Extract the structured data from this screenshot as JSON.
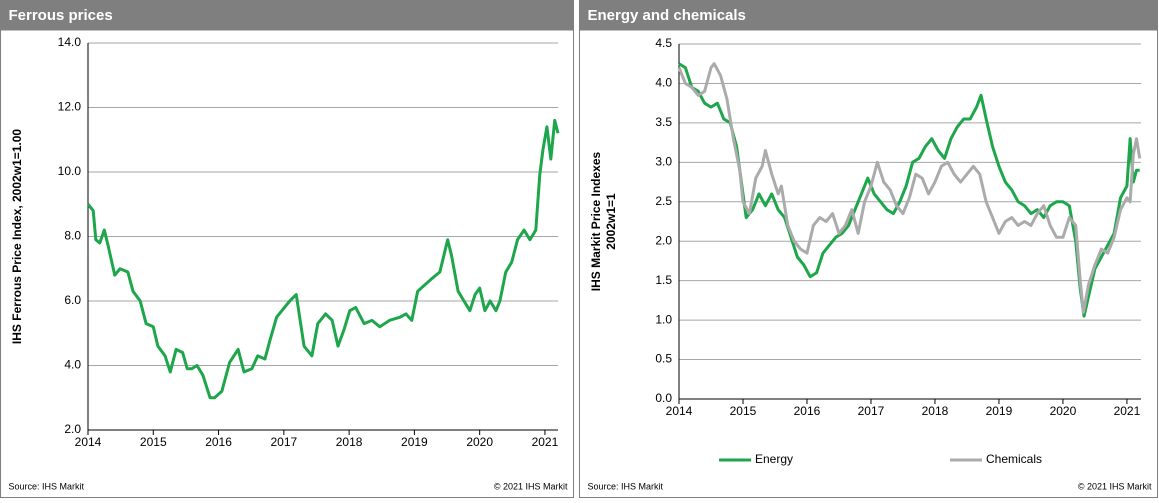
{
  "chart_data": [
    {
      "type": "line",
      "title": "Ferrous prices",
      "ylabel": "IHS Ferrous Price Index, 2002w1=1.00",
      "source": "Source: IHS Markit",
      "copyright": "© 2021 IHS Markit",
      "xlim": [
        2014,
        2021.2
      ],
      "xticks": [
        2014,
        2015,
        2016,
        2017,
        2018,
        2019,
        2020,
        2021
      ],
      "ylim": [
        2,
        14
      ],
      "yticks": [
        {
          "value": 2,
          "label": "2.0"
        },
        {
          "value": 4,
          "label": "4.0"
        },
        {
          "value": 6,
          "label": "6.0"
        },
        {
          "value": 8,
          "label": "8.0"
        },
        {
          "value": 10,
          "label": "10.0"
        },
        {
          "value": 12,
          "label": "12.0"
        },
        {
          "value": 14,
          "label": "14.0"
        }
      ],
      "grid": true,
      "series": [
        {
          "color": "#1ea64b",
          "x": [
            2014.0,
            2014.08,
            2014.12,
            2014.18,
            2014.25,
            2014.31,
            2014.41,
            2014.49,
            2014.61,
            2014.69,
            2014.8,
            2014.89,
            2015.0,
            2015.07,
            2015.18,
            2015.26,
            2015.35,
            2015.45,
            2015.52,
            2015.59,
            2015.67,
            2015.76,
            2015.87,
            2015.94,
            2016.05,
            2016.17,
            2016.3,
            2016.39,
            2016.51,
            2016.6,
            2016.71,
            2016.79,
            2016.89,
            2016.97,
            2017.09,
            2017.19,
            2017.31,
            2017.43,
            2017.52,
            2017.64,
            2017.74,
            2017.83,
            2017.92,
            2018.01,
            2018.1,
            2018.23,
            2018.35,
            2018.47,
            2018.62,
            2018.78,
            2018.87,
            2018.96,
            2019.05,
            2019.16,
            2019.27,
            2019.39,
            2019.51,
            2019.57,
            2019.67,
            2019.76,
            2019.85,
            2019.93,
            2020.0,
            2020.08,
            2020.16,
            2020.25,
            2020.31,
            2020.4,
            2020.49,
            2020.58,
            2020.68,
            2020.77,
            2020.86,
            2020.92,
            2020.97,
            2021.03,
            2021.09,
            2021.15,
            2021.2
          ],
          "values": [
            9.0,
            8.8,
            7.9,
            7.8,
            8.2,
            7.7,
            6.8,
            7.0,
            6.9,
            6.3,
            6.0,
            5.3,
            5.2,
            4.6,
            4.3,
            3.8,
            4.5,
            4.4,
            3.9,
            3.9,
            4.0,
            3.7,
            3.0,
            3.0,
            3.2,
            4.1,
            4.5,
            3.8,
            3.9,
            4.3,
            4.2,
            4.8,
            5.5,
            5.7,
            6.0,
            6.2,
            4.6,
            4.3,
            5.3,
            5.6,
            5.4,
            4.6,
            5.1,
            5.7,
            5.8,
            5.3,
            5.4,
            5.2,
            5.4,
            5.5,
            5.6,
            5.4,
            6.3,
            6.5,
            6.7,
            6.9,
            7.9,
            7.4,
            6.3,
            6.0,
            5.7,
            6.2,
            6.4,
            5.7,
            6.0,
            5.7,
            6.0,
            6.9,
            7.2,
            7.9,
            8.2,
            7.9,
            8.2,
            9.9,
            10.7,
            11.4,
            10.4,
            11.6,
            11.2
          ]
        }
      ]
    },
    {
      "type": "line",
      "title": "Energy and chemicals",
      "ylabel": [
        "IHS Markit Price Indexes",
        "2002w1=1"
      ],
      "source": "Source: IHS Markit",
      "copyright": "© 2021 IHS Markit",
      "xlim": [
        2014,
        2021.22
      ],
      "xticks": [
        2014,
        2015,
        2016,
        2017,
        2018,
        2019,
        2020,
        2021
      ],
      "ylim": [
        0,
        4.5
      ],
      "yticks": [
        {
          "value": 0,
          "label": "0.0"
        },
        {
          "value": 0.5,
          "label": "0.5"
        },
        {
          "value": 1,
          "label": "1.0"
        },
        {
          "value": 1.5,
          "label": "1.5"
        },
        {
          "value": 2,
          "label": "2.0"
        },
        {
          "value": 2.5,
          "label": "2.5"
        },
        {
          "value": 3,
          "label": "3.0"
        },
        {
          "value": 3.5,
          "label": "3.5"
        },
        {
          "value": 4,
          "label": "4.0"
        },
        {
          "value": 4.5,
          "label": "4.5"
        }
      ],
      "grid": true,
      "legend": "bottom",
      "series": [
        {
          "name": "Energy",
          "color": "#1ea64b",
          "x": [
            2014.0,
            2014.1,
            2014.2,
            2014.3,
            2014.4,
            2014.5,
            2014.6,
            2014.7,
            2014.8,
            2014.9,
            2015.0,
            2015.05,
            2015.15,
            2015.25,
            2015.35,
            2015.45,
            2015.55,
            2015.65,
            2015.75,
            2015.85,
            2015.95,
            2016.05,
            2016.15,
            2016.25,
            2016.35,
            2016.45,
            2016.55,
            2016.65,
            2016.75,
            2016.85,
            2016.95,
            2017.05,
            2017.15,
            2017.25,
            2017.35,
            2017.45,
            2017.55,
            2017.65,
            2017.75,
            2017.85,
            2017.95,
            2018.05,
            2018.15,
            2018.25,
            2018.35,
            2018.45,
            2018.55,
            2018.65,
            2018.72,
            2018.8,
            2018.9,
            2019.0,
            2019.1,
            2019.2,
            2019.3,
            2019.4,
            2019.5,
            2019.6,
            2019.7,
            2019.8,
            2019.9,
            2020.0,
            2020.1,
            2020.2,
            2020.27,
            2020.33,
            2020.4,
            2020.5,
            2020.6,
            2020.7,
            2020.8,
            2020.9,
            2021.0,
            2021.05,
            2021.1,
            2021.15,
            2021.2
          ],
          "values": [
            4.25,
            4.2,
            3.95,
            3.9,
            3.75,
            3.7,
            3.75,
            3.55,
            3.5,
            3.2,
            2.6,
            2.3,
            2.4,
            2.6,
            2.45,
            2.6,
            2.4,
            2.3,
            2.05,
            1.8,
            1.7,
            1.55,
            1.6,
            1.85,
            1.95,
            2.05,
            2.1,
            2.2,
            2.4,
            2.6,
            2.8,
            2.6,
            2.5,
            2.4,
            2.35,
            2.5,
            2.7,
            3.0,
            3.05,
            3.2,
            3.3,
            3.15,
            3.05,
            3.3,
            3.45,
            3.55,
            3.55,
            3.7,
            3.85,
            3.55,
            3.2,
            2.95,
            2.75,
            2.65,
            2.5,
            2.45,
            2.35,
            2.4,
            2.3,
            2.45,
            2.5,
            2.5,
            2.45,
            2.0,
            1.4,
            1.05,
            1.3,
            1.65,
            1.8,
            1.95,
            2.1,
            2.55,
            2.7,
            3.3,
            2.75,
            2.9,
            2.9
          ]
        },
        {
          "name": "Chemicals",
          "color": "#ababab",
          "x": [
            2014.0,
            2014.1,
            2014.2,
            2014.3,
            2014.4,
            2014.5,
            2014.55,
            2014.65,
            2014.75,
            2014.85,
            2014.95,
            2015.0,
            2015.1,
            2015.2,
            2015.3,
            2015.35,
            2015.45,
            2015.55,
            2015.6,
            2015.7,
            2015.8,
            2015.9,
            2016.0,
            2016.1,
            2016.2,
            2016.3,
            2016.4,
            2016.5,
            2016.6,
            2016.7,
            2016.8,
            2016.9,
            2017.0,
            2017.1,
            2017.2,
            2017.3,
            2017.4,
            2017.5,
            2017.6,
            2017.7,
            2017.8,
            2017.9,
            2018.0,
            2018.1,
            2018.2,
            2018.3,
            2018.4,
            2018.5,
            2018.6,
            2018.7,
            2018.8,
            2018.9,
            2019.0,
            2019.1,
            2019.2,
            2019.3,
            2019.4,
            2019.5,
            2019.6,
            2019.7,
            2019.8,
            2019.9,
            2020.0,
            2020.1,
            2020.2,
            2020.27,
            2020.32,
            2020.4,
            2020.5,
            2020.6,
            2020.7,
            2020.8,
            2020.9,
            2021.0,
            2021.05,
            2021.1,
            2021.15,
            2021.2
          ],
          "values": [
            4.2,
            4.0,
            3.95,
            3.85,
            3.9,
            4.2,
            4.25,
            4.1,
            3.8,
            3.3,
            2.9,
            2.5,
            2.35,
            2.8,
            2.95,
            3.15,
            2.85,
            2.6,
            2.7,
            2.2,
            2.0,
            1.9,
            1.85,
            2.2,
            2.3,
            2.25,
            2.35,
            2.1,
            2.2,
            2.4,
            2.1,
            2.5,
            2.7,
            3.0,
            2.75,
            2.65,
            2.45,
            2.35,
            2.55,
            2.85,
            2.8,
            2.6,
            2.75,
            2.95,
            3.0,
            2.85,
            2.75,
            2.85,
            2.95,
            2.85,
            2.5,
            2.3,
            2.1,
            2.25,
            2.3,
            2.2,
            2.25,
            2.2,
            2.35,
            2.45,
            2.2,
            2.05,
            2.05,
            2.3,
            2.2,
            1.5,
            1.1,
            1.45,
            1.7,
            1.9,
            1.85,
            2.05,
            2.4,
            2.55,
            2.5,
            3.1,
            3.3,
            3.05
          ]
        }
      ]
    }
  ]
}
